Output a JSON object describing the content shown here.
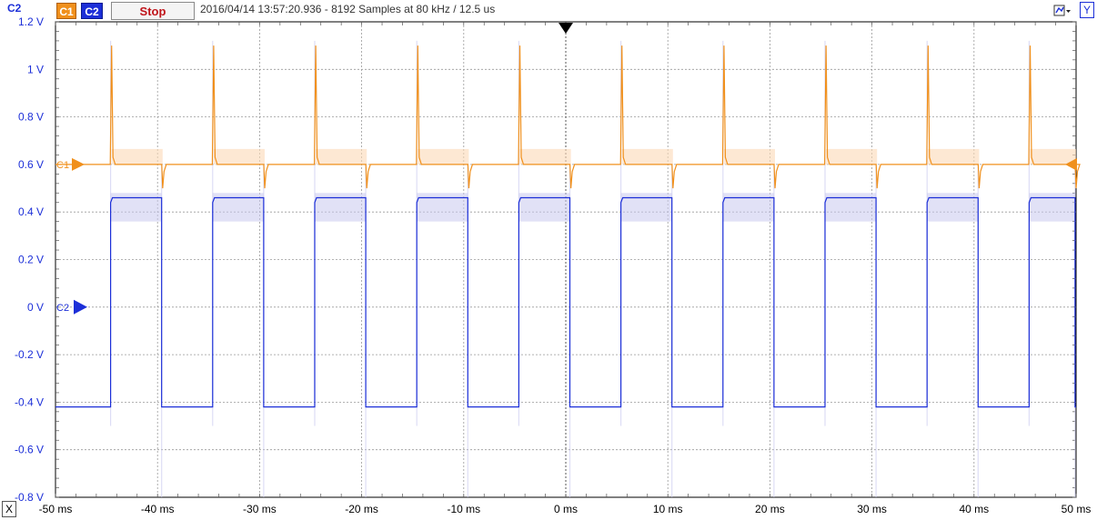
{
  "toolbar": {
    "channel_label": "C2",
    "c1_label": "C1",
    "c2_label": "C2",
    "stop_label": "Stop",
    "status": "2016/04/14  13:57:20.936 - 8192 Samples at 80 kHz / 12.5 us",
    "y_label": "Y",
    "x_label": "X",
    "menu_icon": "settings-dropdown-icon"
  },
  "markers": {
    "c1_marker_label": "C1",
    "c2_marker_label": "C2"
  },
  "colors": {
    "c1": "#f0901c",
    "c2": "#1c2fd8",
    "grid": "#9a9a9a",
    "axis_text": "#1c2fd8"
  },
  "chart_data": {
    "type": "line",
    "title": "",
    "xlabel": "",
    "ylabel": "C2",
    "x_unit": "ms",
    "xlim": [
      -50,
      50
    ],
    "ylim": [
      -0.8,
      1.2
    ],
    "x_ticks": [
      "-50 ms",
      "-40 ms",
      "-30 ms",
      "-20 ms",
      "-10 ms",
      "0 ms",
      "10 ms",
      "20 ms",
      "30 ms",
      "40 ms",
      "50 ms"
    ],
    "y_ticks": [
      "1.2 V",
      "1 V",
      "0.8 V",
      "0.6 V",
      "0.4 V",
      "0.2 V",
      "0 V",
      "-0.2 V",
      "-0.4 V",
      "-0.6 V",
      "-0.8 V"
    ],
    "grid": true,
    "trigger_time_ms": 0,
    "series": [
      {
        "name": "C1",
        "shape": "baseline with periodic spikes",
        "baseline_v": 0.6,
        "spike_peak_v": 1.1,
        "dip_v": 0.57,
        "rising_spikes_ms": [
          -44.5,
          -34.5,
          -24.5,
          -14.5,
          -4.5,
          5.5,
          15.5,
          25.5,
          35.5,
          45.5
        ],
        "falling_dips_ms": [
          -39.5,
          -29.5,
          -19.5,
          -9.5,
          0.5,
          10.5,
          20.5,
          30.5,
          40.5,
          50
        ]
      },
      {
        "name": "C2",
        "shape": "square wave",
        "high_v": 0.46,
        "low_v": -0.42,
        "period_ms": 10,
        "rising_edges_ms": [
          -44.6,
          -34.6,
          -24.6,
          -14.6,
          -4.6,
          5.4,
          15.4,
          25.4,
          35.4,
          45.4
        ],
        "falling_edges_ms": [
          -39.6,
          -29.6,
          -19.6,
          -9.6,
          0.4,
          10.4,
          20.4,
          30.4,
          40.4,
          49.9
        ]
      }
    ]
  }
}
